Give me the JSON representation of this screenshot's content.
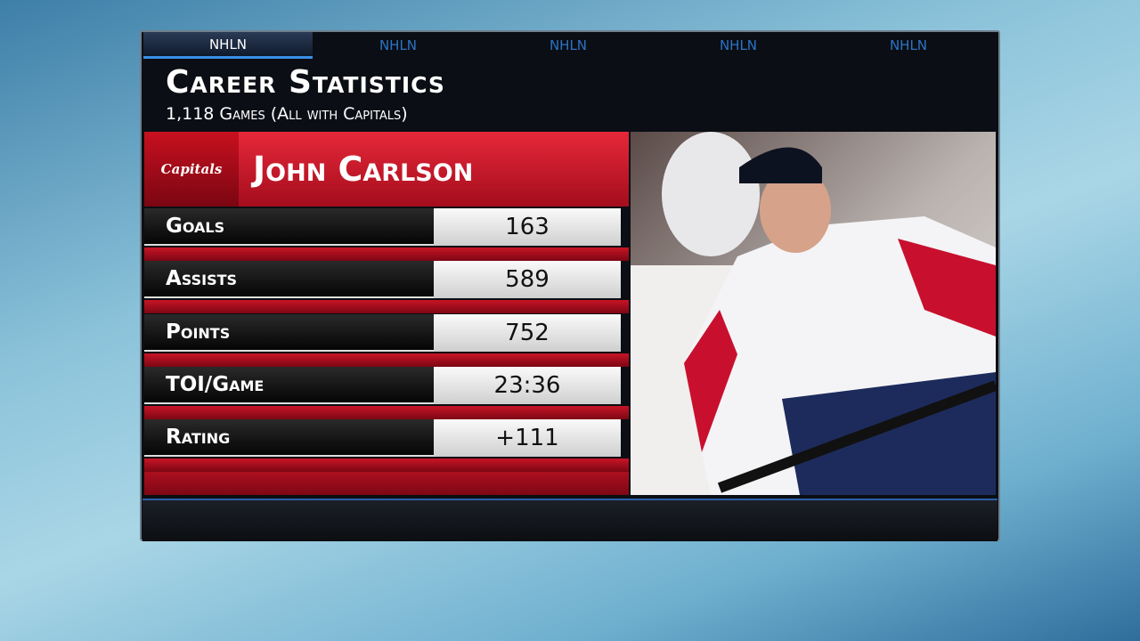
{
  "tabs": [
    "NHLN",
    "NHLN",
    "NHLN",
    "NHLN",
    "NHLN"
  ],
  "header": {
    "title": "Career Statistics",
    "subtitle": "1,118 Games (All with Capitals)"
  },
  "player": {
    "name": "John Carlson",
    "team_logo": "Capitals"
  },
  "stats": {
    "rows": [
      {
        "label": "Goals",
        "value": "163"
      },
      {
        "label": "Assists",
        "value": "589"
      },
      {
        "label": "Points",
        "value": "752"
      },
      {
        "label": "TOI/Game",
        "value": "23:36"
      },
      {
        "label": "Rating",
        "value": "+111"
      }
    ]
  }
}
